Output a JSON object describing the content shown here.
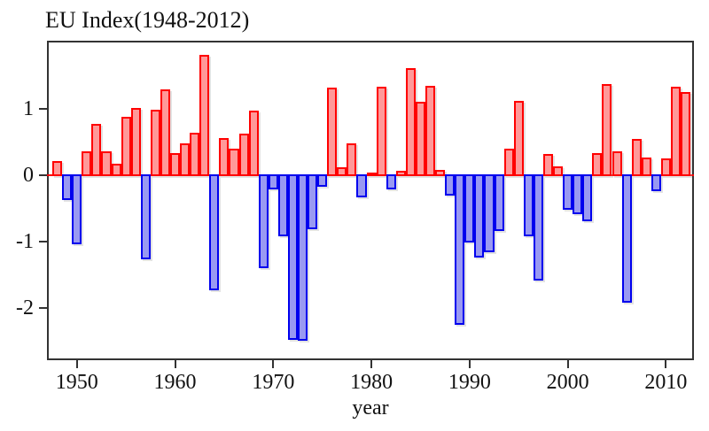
{
  "chart_data": {
    "type": "bar",
    "title": "EU Index(1948-2012)",
    "xlabel": "year",
    "ylabel": "",
    "years": [
      1948,
      1949,
      1950,
      1951,
      1952,
      1953,
      1954,
      1955,
      1956,
      1957,
      1958,
      1959,
      1960,
      1961,
      1962,
      1963,
      1964,
      1965,
      1966,
      1967,
      1968,
      1969,
      1970,
      1971,
      1972,
      1973,
      1974,
      1975,
      1976,
      1977,
      1978,
      1979,
      1980,
      1981,
      1982,
      1983,
      1984,
      1985,
      1986,
      1987,
      1988,
      1989,
      1990,
      1991,
      1992,
      1993,
      1994,
      1995,
      1996,
      1997,
      1998,
      1999,
      2000,
      2001,
      2002,
      2003,
      2004,
      2005,
      2006,
      2007,
      2008,
      2009,
      2010,
      2011,
      2012
    ],
    "values": [
      0.2,
      -0.36,
      -1.02,
      0.34,
      0.76,
      0.35,
      0.16,
      0.86,
      1.0,
      -1.25,
      0.97,
      1.27,
      0.32,
      0.46,
      0.63,
      1.79,
      -1.72,
      0.55,
      0.38,
      0.61,
      0.96,
      -1.39,
      -0.2,
      -0.9,
      -2.46,
      -2.48,
      -0.8,
      -0.16,
      1.3,
      0.1,
      0.46,
      -0.32,
      0.02,
      1.32,
      -0.2,
      0.05,
      1.59,
      1.09,
      1.33,
      0.07,
      -0.29,
      -2.24,
      -1.0,
      -1.22,
      -1.14,
      -0.83,
      0.39,
      1.1,
      -0.9,
      -1.57,
      0.3,
      0.12,
      -0.51,
      -0.57,
      -0.68,
      0.32,
      1.35,
      0.34,
      -1.9,
      0.53,
      0.25,
      -0.23,
      0.24,
      1.31,
      1.24
    ],
    "ytick_values": [
      1,
      0,
      -1,
      -2
    ],
    "ytick_labels": [
      "1",
      "0",
      "-1",
      "-2"
    ],
    "xtick_values": [
      1950,
      1960,
      1970,
      1980,
      1990,
      2000,
      2010
    ],
    "xtick_labels": [
      "1950",
      "1960",
      "1970",
      "1980",
      "1990",
      "2000",
      "2010"
    ],
    "ylim": [
      -2.78,
      2.02
    ],
    "xlim": [
      1946.95,
      2012.85
    ],
    "grid": "off",
    "legend": "none",
    "colors": {
      "positive_fill": "#ff9999",
      "positive_border": "#ff0000",
      "negative_fill": "#9999f2",
      "negative_border": "#0000ee",
      "baseline": "#ff0000",
      "frame": "#333333",
      "text": "#111111"
    }
  }
}
